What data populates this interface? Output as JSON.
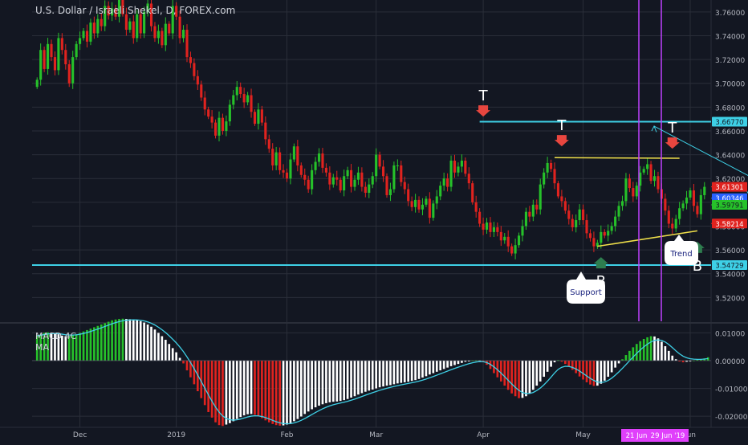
{
  "header": {
    "title": "U.S. Dollar / Israeli Shekel, D, FOREX.com"
  },
  "indicator": {
    "name": "MACD 4C",
    "ma_label": "MA"
  },
  "colors": {
    "bg": "#131722",
    "grid": "#2a2e39",
    "axis_text": "#b2b5be",
    "bull": "#26c12a",
    "bear": "#e0231f",
    "cyan": "#3ed0e6",
    "yellow": "#f0e04a",
    "magenta": "#c040ff",
    "macd_white": "#ffffff",
    "arrow_red": "#e8463f",
    "arrow_green": "#2e7d4f"
  },
  "chart_data": [
    {
      "type": "candlestick",
      "title": "U.S. Dollar / Israeli Shekel, D, FOREX.com",
      "x_ticks": [
        "Dec",
        "2019",
        "Feb",
        "Mar",
        "Apr",
        "May",
        "Jun"
      ],
      "x_tick_index": [
        12,
        39,
        70,
        95,
        125,
        153,
        183
      ],
      "ylim": [
        3.5,
        3.77
      ],
      "y_ticks": [
        "3.76000",
        "3.74000",
        "3.72000",
        "3.70000",
        "3.68000",
        "3.66000",
        "3.64000",
        "3.62000",
        "3.60000",
        "3.58000",
        "3.56000",
        "3.54000",
        "3.52000"
      ],
      "closes": [
        3.703,
        3.728,
        3.712,
        3.733,
        3.722,
        3.711,
        3.738,
        3.728,
        3.716,
        3.7,
        3.722,
        3.733,
        3.738,
        3.744,
        3.735,
        3.751,
        3.742,
        3.754,
        3.748,
        3.765,
        3.757,
        3.763,
        3.756,
        3.772,
        3.758,
        3.745,
        3.752,
        3.738,
        3.758,
        3.742,
        3.76,
        3.767,
        3.748,
        3.738,
        3.744,
        3.732,
        3.75,
        3.742,
        3.765,
        3.756,
        3.738,
        3.745,
        3.722,
        3.717,
        3.706,
        3.699,
        3.688,
        3.678,
        3.672,
        3.667,
        3.656,
        3.671,
        3.66,
        3.668,
        3.682,
        3.69,
        3.697,
        3.691,
        3.684,
        3.69,
        3.676,
        3.666,
        3.678,
        3.667,
        3.653,
        3.645,
        3.631,
        3.642,
        3.627,
        3.625,
        3.62,
        3.636,
        3.647,
        3.631,
        3.623,
        3.619,
        3.611,
        3.627,
        3.634,
        3.641,
        3.629,
        3.625,
        3.615,
        3.621,
        3.619,
        3.61,
        3.622,
        3.627,
        3.613,
        3.619,
        3.625,
        3.613,
        3.608,
        3.615,
        3.622,
        3.64,
        3.63,
        3.622,
        3.606,
        3.611,
        3.631,
        3.631,
        3.617,
        3.611,
        3.601,
        3.596,
        3.602,
        3.594,
        3.598,
        3.603,
        3.587,
        3.599,
        3.605,
        3.614,
        3.62,
        3.613,
        3.635,
        3.625,
        3.63,
        3.635,
        3.624,
        3.616,
        3.6,
        3.592,
        3.582,
        3.577,
        3.583,
        3.575,
        3.579,
        3.575,
        3.568,
        3.571,
        3.563,
        3.557,
        3.564,
        3.572,
        3.58,
        3.592,
        3.588,
        3.598,
        3.594,
        3.615,
        3.625,
        3.633,
        3.628,
        3.616,
        3.605,
        3.601,
        3.593,
        3.586,
        3.579,
        3.585,
        3.594,
        3.585,
        3.574,
        3.57,
        3.563,
        3.566,
        3.575,
        3.572,
        3.576,
        3.58,
        3.588,
        3.597,
        3.601,
        3.62,
        3.612,
        3.605,
        3.614,
        3.625,
        3.628,
        3.632,
        3.618,
        3.622,
        3.611,
        3.603,
        3.593,
        3.582,
        3.578,
        3.586,
        3.595,
        3.599,
        3.604,
        3.61,
        3.597,
        3.59,
        3.606,
        3.613
      ],
      "levels": [
        {
          "label": "3.66770",
          "value": 3.6677,
          "color": "cyan"
        },
        {
          "label": "3.61301",
          "value": 3.61301,
          "color": "red"
        },
        {
          "label": "3.60346",
          "value": 3.60346,
          "color": "blue"
        },
        {
          "label": "3.59791",
          "value": 3.59791,
          "color": "green"
        },
        {
          "label": "3.58214",
          "value": 3.58214,
          "color": "red"
        },
        {
          "label": "3.54729",
          "value": 3.54729,
          "color": "cyan"
        }
      ],
      "annotations": [
        {
          "text": "T",
          "kind": "top",
          "index": 125,
          "value": 3.668
        },
        {
          "text": "T",
          "kind": "top",
          "index": 147,
          "value": 3.643
        },
        {
          "text": "T",
          "kind": "top",
          "index": 178,
          "value": 3.641
        },
        {
          "text": "B",
          "kind": "bottom",
          "index": 158,
          "value": 3.558
        },
        {
          "text": "B",
          "kind": "bottom",
          "index": 185,
          "value": 3.571
        }
      ],
      "callouts": [
        {
          "text": "Support"
        },
        {
          "text": "Trend"
        }
      ]
    },
    {
      "type": "bar",
      "title": "MACD 4C",
      "series_name": "MA",
      "ylim": [
        -0.024,
        0.013
      ],
      "y_ticks": [
        "0.01000",
        "0.00000",
        "-0.01000",
        "-0.02000"
      ],
      "x_ticks": [
        "Dec",
        "2019",
        "Feb",
        "Mar",
        "Apr",
        "May",
        "Jun"
      ],
      "x_tick_index": [
        12,
        39,
        70,
        95,
        125,
        153,
        183
      ],
      "histogram": [
        0.009,
        0.0095,
        0.01,
        0.0102,
        0.0101,
        0.0099,
        0.0095,
        0.009,
        0.0088,
        0.0089,
        0.0092,
        0.0095,
        0.01,
        0.0105,
        0.011,
        0.0115,
        0.012,
        0.0125,
        0.013,
        0.0135,
        0.014,
        0.0145,
        0.0148,
        0.015,
        0.0151,
        0.015,
        0.0149,
        0.0148,
        0.0146,
        0.0142,
        0.0137,
        0.013,
        0.0122,
        0.0112,
        0.01,
        0.0088,
        0.0075,
        0.006,
        0.0045,
        0.003,
        0.001,
        -0.001,
        -0.0035,
        -0.006,
        -0.0085,
        -0.011,
        -0.0135,
        -0.016,
        -0.0185,
        -0.0205,
        -0.0222,
        -0.0232,
        -0.0235,
        -0.023,
        -0.0225,
        -0.0218,
        -0.021,
        -0.0203,
        -0.0197,
        -0.0193,
        -0.0192,
        -0.0195,
        -0.02,
        -0.0207,
        -0.0215,
        -0.0222,
        -0.0228,
        -0.0232,
        -0.0234,
        -0.0233,
        -0.023,
        -0.0225,
        -0.0218,
        -0.021,
        -0.0201,
        -0.0192,
        -0.0183,
        -0.0175,
        -0.0168,
        -0.0162,
        -0.0157,
        -0.0153,
        -0.015,
        -0.0148,
        -0.0147,
        -0.0145,
        -0.0142,
        -0.0138,
        -0.0133,
        -0.0128,
        -0.0122,
        -0.0117,
        -0.0112,
        -0.0108,
        -0.0104,
        -0.01,
        -0.0096,
        -0.0093,
        -0.009,
        -0.0088,
        -0.0085,
        -0.0082,
        -0.008,
        -0.0078,
        -0.0076,
        -0.0073,
        -0.007,
        -0.0066,
        -0.0061,
        -0.0056,
        -0.005,
        -0.0045,
        -0.004,
        -0.0035,
        -0.003,
        -0.0025,
        -0.002,
        -0.0016,
        -0.0012,
        -0.0008,
        -0.0004,
        -0.0001,
        0.0001,
        0.0002,
        0.0001,
        -0.0005,
        -0.0015,
        -0.003,
        -0.0045,
        -0.006,
        -0.0075,
        -0.009,
        -0.0105,
        -0.0118,
        -0.0128,
        -0.0135,
        -0.0134,
        -0.0128,
        -0.0118,
        -0.0105,
        -0.009,
        -0.0075,
        -0.0058,
        -0.004,
        -0.0022,
        -0.0006,
        0.0002,
        -0.0004,
        -0.0012,
        -0.0022,
        -0.0033,
        -0.0045,
        -0.0057,
        -0.0068,
        -0.0078,
        -0.0086,
        -0.0091,
        -0.009,
        -0.0083,
        -0.0072,
        -0.0058,
        -0.0042,
        -0.0025,
        -0.001,
        0.0005,
        0.002,
        0.0035,
        0.0048,
        0.006,
        0.007,
        0.0078,
        0.0084,
        0.0088,
        0.0087,
        0.008,
        0.0068,
        0.0052,
        0.0035,
        0.0018,
        0.0005,
        -0.0003,
        -0.0006,
        -0.0004,
        -0.0002,
        0.0001,
        0.0003,
        0.0005,
        0.0008,
        0.0012
      ]
    }
  ],
  "x_badges": [
    "21 Jun",
    "29 Jun '19"
  ]
}
